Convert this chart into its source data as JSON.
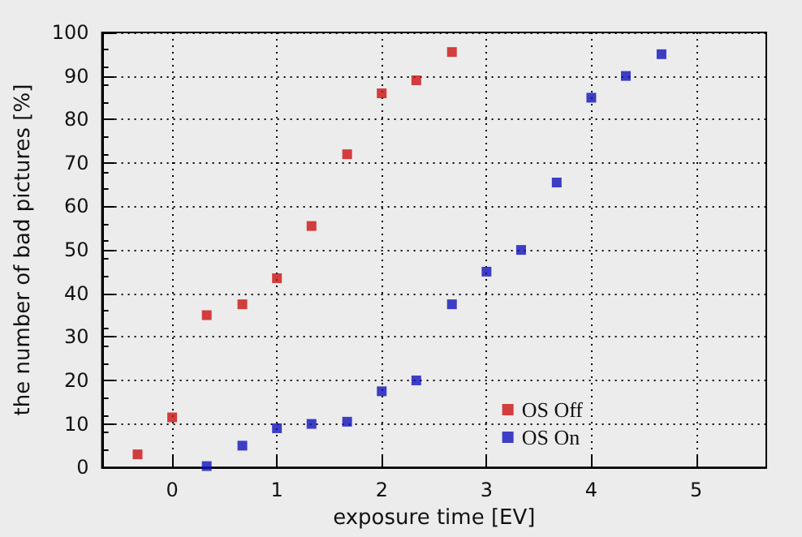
{
  "chart_data": {
    "type": "scatter",
    "xlabel": "exposure time [EV]",
    "ylabel": "the number of bad pictures [%]",
    "xlim": [
      -0.67,
      5.67
    ],
    "xticks": [
      0,
      1,
      2,
      3,
      4,
      5
    ],
    "ylim": [
      0,
      100
    ],
    "yticks": [
      0,
      10,
      20,
      30,
      40,
      50,
      60,
      70,
      80,
      90,
      100
    ],
    "grid": true,
    "legend": "bottom right",
    "marker": "square",
    "series": [
      {
        "name": "OS Off",
        "color": "#cc1111",
        "x": [
          -0.33,
          0,
          0.33,
          0.67,
          1,
          1.33,
          1.67,
          2,
          2.33,
          2.67
        ],
        "values": [
          3,
          11.5,
          35,
          37.5,
          43.5,
          55.5,
          72,
          86,
          89,
          95.5
        ]
      },
      {
        "name": "OS On",
        "color": "#1111bb",
        "x": [
          0.33,
          0.67,
          1,
          1.33,
          1.67,
          2,
          2.33,
          2.67,
          3,
          3.33,
          3.67,
          4,
          4.33,
          4.67
        ],
        "values": [
          0.3,
          5,
          9,
          10,
          10.5,
          17.5,
          20,
          37.5,
          45,
          50,
          65.5,
          85,
          90,
          95
        ]
      }
    ]
  }
}
